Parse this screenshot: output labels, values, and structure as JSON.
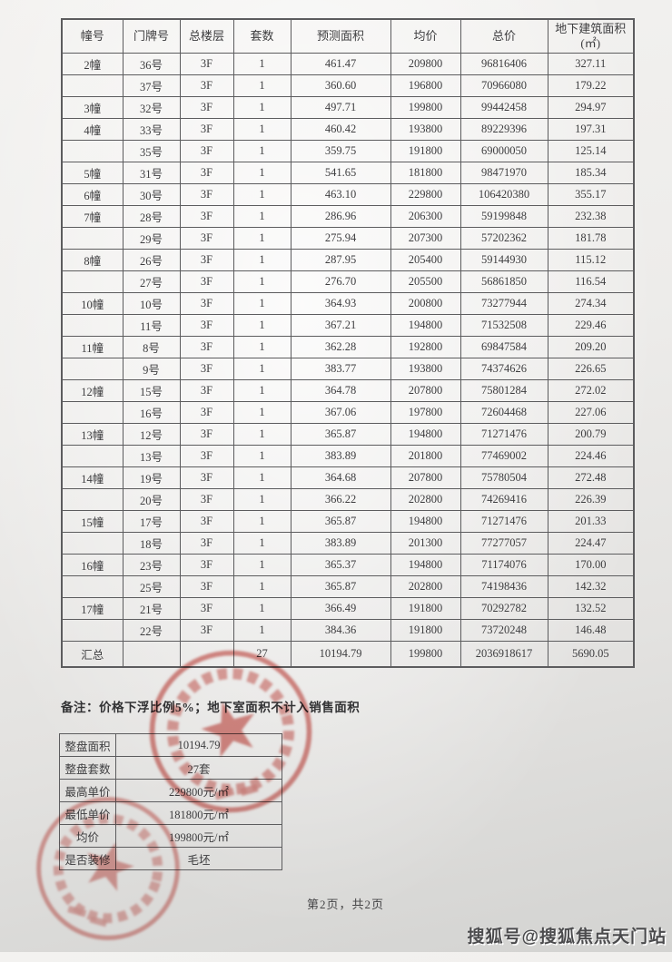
{
  "document": {
    "note": "备注：价格下浮比例5%；地下室面积不计入销售面积",
    "footer_page_text": "第2页，共2页",
    "watermark_text": "搜狐号@搜狐焦点天门站"
  },
  "price_table": {
    "headers": [
      "幢号",
      "门牌号",
      "总楼层",
      "套数",
      "预测面积",
      "均价",
      "总价",
      "地下建筑面积 (㎡)"
    ],
    "rows": [
      [
        "2幢",
        "36号",
        "3F",
        "1",
        "461.47",
        "209800",
        "96816406",
        "327.11"
      ],
      [
        "",
        "37号",
        "3F",
        "1",
        "360.60",
        "196800",
        "70966080",
        "179.22"
      ],
      [
        "3幢",
        "32号",
        "3F",
        "1",
        "497.71",
        "199800",
        "99442458",
        "294.97"
      ],
      [
        "4幢",
        "33号",
        "3F",
        "1",
        "460.42",
        "193800",
        "89229396",
        "197.31"
      ],
      [
        "",
        "35号",
        "3F",
        "1",
        "359.75",
        "191800",
        "69000050",
        "125.14"
      ],
      [
        "5幢",
        "31号",
        "3F",
        "1",
        "541.65",
        "181800",
        "98471970",
        "185.34"
      ],
      [
        "6幢",
        "30号",
        "3F",
        "1",
        "463.10",
        "229800",
        "106420380",
        "355.17"
      ],
      [
        "7幢",
        "28号",
        "3F",
        "1",
        "286.96",
        "206300",
        "59199848",
        "232.38"
      ],
      [
        "",
        "29号",
        "3F",
        "1",
        "275.94",
        "207300",
        "57202362",
        "181.78"
      ],
      [
        "8幢",
        "26号",
        "3F",
        "1",
        "287.95",
        "205400",
        "59144930",
        "115.12"
      ],
      [
        "",
        "27号",
        "3F",
        "1",
        "276.70",
        "205500",
        "56861850",
        "116.54"
      ],
      [
        "10幢",
        "10号",
        "3F",
        "1",
        "364.93",
        "200800",
        "73277944",
        "274.34"
      ],
      [
        "",
        "11号",
        "3F",
        "1",
        "367.21",
        "194800",
        "71532508",
        "229.46"
      ],
      [
        "11幢",
        "8号",
        "3F",
        "1",
        "362.28",
        "192800",
        "69847584",
        "209.20"
      ],
      [
        "",
        "9号",
        "3F",
        "1",
        "383.77",
        "193800",
        "74374626",
        "226.65"
      ],
      [
        "12幢",
        "15号",
        "3F",
        "1",
        "364.78",
        "207800",
        "75801284",
        "272.02"
      ],
      [
        "",
        "16号",
        "3F",
        "1",
        "367.06",
        "197800",
        "72604468",
        "227.06"
      ],
      [
        "13幢",
        "12号",
        "3F",
        "1",
        "365.87",
        "194800",
        "71271476",
        "200.79"
      ],
      [
        "",
        "13号",
        "3F",
        "1",
        "383.89",
        "201800",
        "77469002",
        "224.46"
      ],
      [
        "14幢",
        "19号",
        "3F",
        "1",
        "364.68",
        "207800",
        "75780504",
        "272.48"
      ],
      [
        "",
        "20号",
        "3F",
        "1",
        "366.22",
        "202800",
        "74269416",
        "226.39"
      ],
      [
        "15幢",
        "17号",
        "3F",
        "1",
        "365.87",
        "194800",
        "71271476",
        "201.33"
      ],
      [
        "",
        "18号",
        "3F",
        "1",
        "383.89",
        "201300",
        "77277057",
        "224.47"
      ],
      [
        "16幢",
        "23号",
        "3F",
        "1",
        "365.37",
        "194800",
        "71174076",
        "170.00"
      ],
      [
        "",
        "25号",
        "3F",
        "1",
        "365.87",
        "202800",
        "74198436",
        "142.32"
      ],
      [
        "17幢",
        "21号",
        "3F",
        "1",
        "366.49",
        "191800",
        "70292782",
        "132.52"
      ],
      [
        "",
        "22号",
        "3F",
        "1",
        "384.36",
        "191800",
        "73720248",
        "146.48"
      ]
    ],
    "summary_row": [
      "汇总",
      "",
      "",
      "27",
      "10194.79",
      "199800",
      "2036918617",
      "5690.05"
    ]
  },
  "overview_table": {
    "rows": [
      {
        "label": "整盘面积",
        "value": "10194.79"
      },
      {
        "label": "整盘套数",
        "value": "27套"
      },
      {
        "label": "最高单价",
        "value": "229800元/㎡"
      },
      {
        "label": "最低单价",
        "value": "181800元/㎡"
      },
      {
        "label": "均价",
        "value": "199800元/㎡"
      },
      {
        "label": "是否装修",
        "value": "毛坯"
      }
    ]
  },
  "stamps": {
    "color": "#c8463f",
    "count": 2,
    "description_icon": "red-seal-stamp"
  }
}
